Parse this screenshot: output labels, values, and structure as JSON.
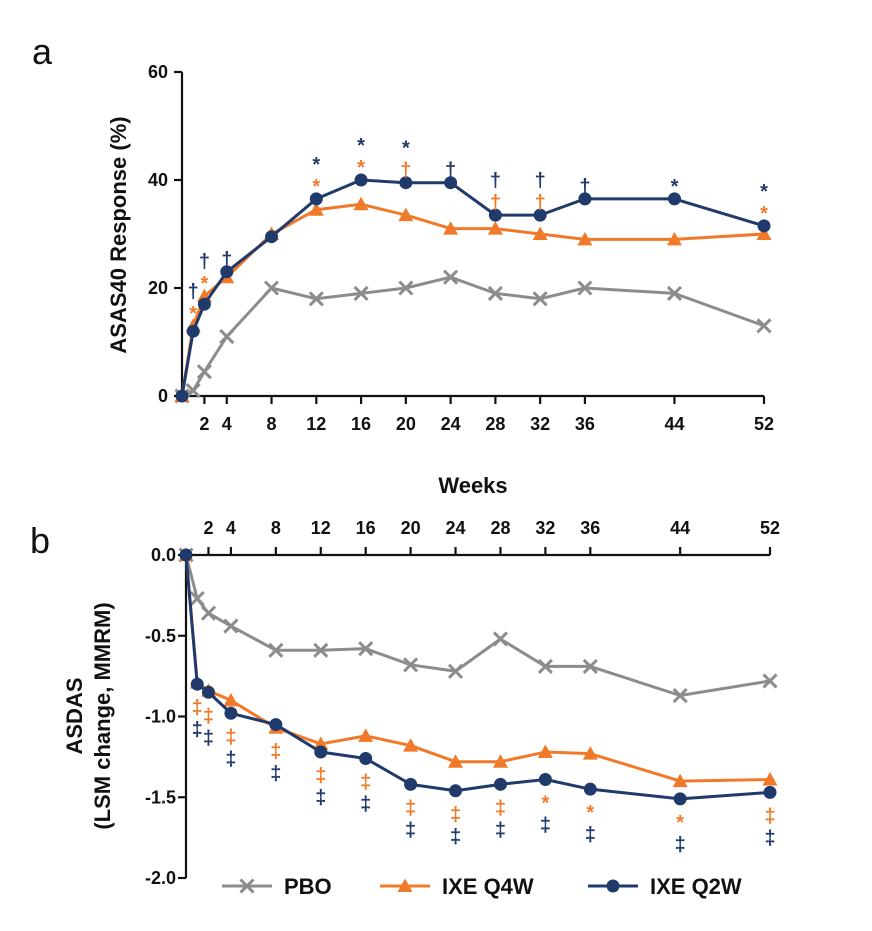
{
  "colors": {
    "PBO": "#8c8c8c",
    "IXE Q4W": "#f07a2a",
    "IXE Q2W": "#1f3a6b"
  },
  "legend": [
    "PBO",
    "IXE Q4W",
    "IXE Q2W"
  ],
  "shared_xlabel": "Weeks",
  "chart_data": [
    {
      "panel": "a",
      "type": "line",
      "ylabel": "ASAS40 Response (%)",
      "ylim": [
        0,
        60
      ],
      "yticks": [
        0,
        20,
        40,
        60
      ],
      "xlim": [
        0,
        52
      ],
      "xticks": [
        2,
        4,
        8,
        12,
        16,
        20,
        24,
        28,
        32,
        36,
        44,
        52
      ],
      "series": [
        {
          "name": "PBO",
          "marker": "x",
          "x": [
            0,
            1,
            2,
            4,
            8,
            12,
            16,
            20,
            24,
            28,
            32,
            36,
            44,
            52
          ],
          "values": [
            0,
            1,
            4.5,
            11,
            20,
            18,
            19,
            20,
            22,
            19,
            18,
            20,
            19,
            13
          ]
        },
        {
          "name": "IXE Q4W",
          "marker": "triangle",
          "x": [
            0,
            1,
            2,
            4,
            8,
            12,
            16,
            20,
            24,
            28,
            32,
            36,
            44,
            52
          ],
          "values": [
            0,
            13,
            18.5,
            22,
            30,
            34.5,
            35.5,
            33.5,
            31,
            31,
            30,
            29,
            29,
            30
          ]
        },
        {
          "name": "IXE Q2W",
          "marker": "circle",
          "x": [
            0,
            1,
            2,
            4,
            8,
            12,
            16,
            20,
            24,
            28,
            32,
            36,
            44,
            52
          ],
          "values": [
            0,
            12,
            17,
            23,
            29.5,
            36.5,
            40,
            39.5,
            39.5,
            33.5,
            33.5,
            36.5,
            36.5,
            31.5
          ]
        }
      ],
      "annotations": {
        "IXE Q2W": [
          {
            "x": 1,
            "symbol": "†"
          },
          {
            "x": 2,
            "symbol": "†"
          },
          {
            "x": 4,
            "symbol": "†"
          },
          {
            "x": 12,
            "symbol": "*"
          },
          {
            "x": 16,
            "symbol": "*"
          },
          {
            "x": 20,
            "symbol": "*"
          },
          {
            "x": 24,
            "symbol": "†"
          },
          {
            "x": 28,
            "symbol": "†"
          },
          {
            "x": 32,
            "symbol": "†"
          },
          {
            "x": 36,
            "symbol": "†"
          },
          {
            "x": 44,
            "symbol": "*"
          },
          {
            "x": 52,
            "symbol": "*"
          }
        ],
        "IXE Q4W": [
          {
            "x": 1,
            "symbol": "*"
          },
          {
            "x": 2,
            "symbol": "*"
          },
          {
            "x": 12,
            "symbol": "*"
          },
          {
            "x": 16,
            "symbol": "*"
          },
          {
            "x": 20,
            "symbol": "†"
          },
          {
            "x": 28,
            "symbol": "†"
          },
          {
            "x": 32,
            "symbol": "†"
          },
          {
            "x": 52,
            "symbol": "*"
          }
        ]
      }
    },
    {
      "panel": "b",
      "type": "line",
      "ylabel": [
        "ASDAS",
        "(LSM change, MMRM)"
      ],
      "ylim": [
        -2.0,
        0.0
      ],
      "yticks": [
        "0.0",
        "-0.5",
        "-1.0",
        "-1.5",
        "-2.0"
      ],
      "xlim": [
        0,
        52
      ],
      "xticks": [
        2,
        4,
        8,
        12,
        16,
        20,
        24,
        28,
        32,
        36,
        44,
        52
      ],
      "series": [
        {
          "name": "PBO",
          "marker": "x",
          "x": [
            0,
            1,
            2,
            4,
            8,
            12,
            16,
            20,
            24,
            28,
            32,
            36,
            44,
            52
          ],
          "values": [
            0,
            -0.27,
            -0.36,
            -0.44,
            -0.59,
            -0.59,
            -0.58,
            -0.68,
            -0.72,
            -0.52,
            -0.69,
            -0.69,
            -0.87,
            -0.78
          ]
        },
        {
          "name": "IXE Q4W",
          "marker": "triangle",
          "x": [
            0,
            1,
            2,
            4,
            8,
            12,
            16,
            20,
            24,
            28,
            32,
            36,
            44,
            52
          ],
          "values": [
            0,
            -0.79,
            -0.84,
            -0.9,
            -1.07,
            -1.17,
            -1.12,
            -1.18,
            -1.28,
            -1.28,
            -1.22,
            -1.23,
            -1.4,
            -1.39
          ]
        },
        {
          "name": "IXE Q2W",
          "marker": "circle",
          "x": [
            0,
            1,
            2,
            4,
            8,
            12,
            16,
            20,
            24,
            28,
            32,
            36,
            44,
            52
          ],
          "values": [
            0,
            -0.8,
            -0.85,
            -0.98,
            -1.05,
            -1.22,
            -1.26,
            -1.42,
            -1.46,
            -1.42,
            -1.39,
            -1.45,
            -1.51,
            -1.47
          ]
        }
      ],
      "annotations": {
        "IXE Q4W": [
          {
            "x": 1,
            "symbol": "‡"
          },
          {
            "x": 2,
            "symbol": "‡"
          },
          {
            "x": 4,
            "symbol": "‡"
          },
          {
            "x": 8,
            "symbol": "‡"
          },
          {
            "x": 12,
            "symbol": "‡"
          },
          {
            "x": 16,
            "symbol": "‡"
          },
          {
            "x": 20,
            "symbol": "‡"
          },
          {
            "x": 24,
            "symbol": "‡"
          },
          {
            "x": 28,
            "symbol": "‡"
          },
          {
            "x": 32,
            "symbol": "*"
          },
          {
            "x": 36,
            "symbol": "*"
          },
          {
            "x": 44,
            "symbol": "*"
          },
          {
            "x": 52,
            "symbol": "‡"
          }
        ],
        "IXE Q2W": [
          {
            "x": 1,
            "symbol": "‡"
          },
          {
            "x": 2,
            "symbol": "‡"
          },
          {
            "x": 4,
            "symbol": "‡"
          },
          {
            "x": 8,
            "symbol": "‡"
          },
          {
            "x": 12,
            "symbol": "‡"
          },
          {
            "x": 16,
            "symbol": "‡"
          },
          {
            "x": 20,
            "symbol": "‡"
          },
          {
            "x": 24,
            "symbol": "‡"
          },
          {
            "x": 28,
            "symbol": "‡"
          },
          {
            "x": 32,
            "symbol": "‡"
          },
          {
            "x": 36,
            "symbol": "‡"
          },
          {
            "x": 44,
            "symbol": "‡"
          },
          {
            "x": 52,
            "symbol": "‡"
          }
        ]
      }
    }
  ]
}
